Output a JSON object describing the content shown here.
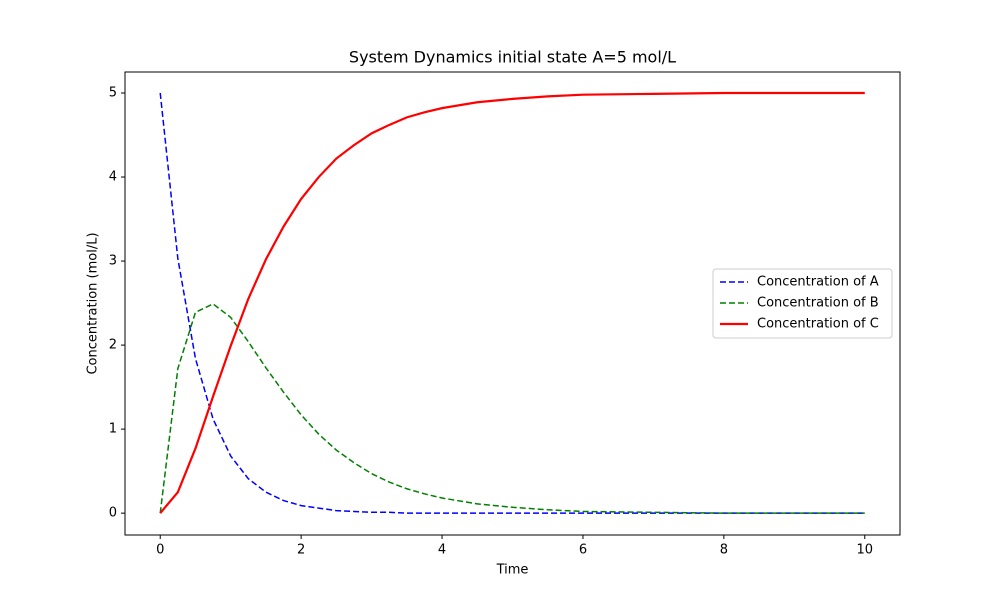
{
  "chart_data": {
    "type": "line",
    "title": "System Dynamics initial state A=5 mol/L",
    "x_label": "Time",
    "y_label": "Concentration (mol/L)",
    "x": [
      0,
      0.25,
      0.5,
      0.75,
      1,
      1.25,
      1.5,
      1.75,
      2,
      2.25,
      2.5,
      2.75,
      3,
      3.25,
      3.5,
      3.75,
      4,
      4.5,
      5,
      5.5,
      6,
      7,
      8,
      9,
      10
    ],
    "series": [
      {
        "name": "Concentration of A",
        "color": "#0000ff",
        "linestyle": "dashed",
        "values": [
          5,
          3.03,
          1.84,
          1.12,
          0.68,
          0.41,
          0.25,
          0.15,
          0.09,
          0.06,
          0.03,
          0.02,
          0.01,
          0.01,
          0,
          0,
          0,
          0,
          0,
          0,
          0,
          0,
          0,
          0,
          0
        ]
      },
      {
        "name": "Concentration of B",
        "color": "#008000",
        "linestyle": "dashed",
        "values": [
          0,
          1.72,
          2.39,
          2.49,
          2.33,
          2.04,
          1.73,
          1.44,
          1.17,
          0.94,
          0.75,
          0.6,
          0.47,
          0.37,
          0.29,
          0.23,
          0.18,
          0.11,
          0.07,
          0.04,
          0.02,
          0.01,
          0,
          0,
          0
        ]
      },
      {
        "name": "Concentration of C",
        "color": "#ff0000",
        "linestyle": "solid",
        "values": [
          0,
          0.25,
          0.77,
          1.39,
          1.99,
          2.55,
          3.02,
          3.41,
          3.74,
          4.0,
          4.22,
          4.38,
          4.52,
          4.62,
          4.71,
          4.77,
          4.82,
          4.89,
          4.93,
          4.96,
          4.98,
          4.99,
          5,
          5,
          5
        ]
      }
    ],
    "xlim": [
      -0.5,
      10.5
    ],
    "ylim": [
      -0.26,
      5.25
    ],
    "xticks": [
      0,
      2,
      4,
      6,
      8,
      10
    ],
    "yticks": [
      0,
      1,
      2,
      3,
      4,
      5
    ],
    "grid": false,
    "legend": "center right"
  }
}
